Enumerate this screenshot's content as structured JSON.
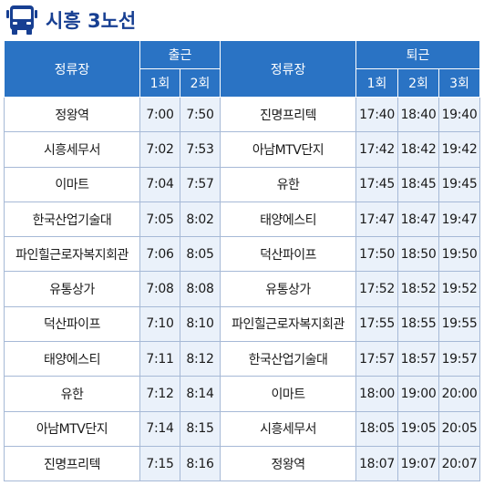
{
  "title": "시흥 3노선",
  "icon": "bus-icon",
  "header": {
    "stop": "정류장",
    "outbound": "출근",
    "inbound": "퇴근",
    "outbound_runs": [
      "1회",
      "2회"
    ],
    "inbound_runs": [
      "1회",
      "2회",
      "3회"
    ]
  },
  "rows": [
    {
      "out_stop": "정왕역",
      "out_times": [
        "7:00",
        "7:50"
      ],
      "in_stop": "진명프리텍",
      "in_times": [
        "17:40",
        "18:40",
        "19:40"
      ]
    },
    {
      "out_stop": "시흥세무서",
      "out_times": [
        "7:02",
        "7:53"
      ],
      "in_stop": "아남MTV단지",
      "in_times": [
        "17:42",
        "18:42",
        "19:42"
      ]
    },
    {
      "out_stop": "이마트",
      "out_times": [
        "7:04",
        "7:57"
      ],
      "in_stop": "유한",
      "in_times": [
        "17:45",
        "18:45",
        "19:45"
      ]
    },
    {
      "out_stop": "한국산업기술대",
      "out_times": [
        "7:05",
        "8:02"
      ],
      "in_stop": "태양에스티",
      "in_times": [
        "17:47",
        "18:47",
        "19:47"
      ]
    },
    {
      "out_stop": "파인힐근로자복지회관",
      "out_times": [
        "7:06",
        "8:05"
      ],
      "in_stop": "덕산파이프",
      "in_times": [
        "17:50",
        "18:50",
        "19:50"
      ]
    },
    {
      "out_stop": "유통상가",
      "out_times": [
        "7:08",
        "8:08"
      ],
      "in_stop": "유통상가",
      "in_times": [
        "17:52",
        "18:52",
        "19:52"
      ]
    },
    {
      "out_stop": "덕산파이프",
      "out_times": [
        "7:10",
        "8:10"
      ],
      "in_stop": "파인힐근로자복지회관",
      "in_times": [
        "17:55",
        "18:55",
        "19:55"
      ]
    },
    {
      "out_stop": "태양에스티",
      "out_times": [
        "7:11",
        "8:12"
      ],
      "in_stop": "한국산업기술대",
      "in_times": [
        "17:57",
        "18:57",
        "19:57"
      ]
    },
    {
      "out_stop": "유한",
      "out_times": [
        "7:12",
        "8:14"
      ],
      "in_stop": "이마트",
      "in_times": [
        "18:00",
        "19:00",
        "20:00"
      ]
    },
    {
      "out_stop": "아남MTV단지",
      "out_times": [
        "7:14",
        "8:15"
      ],
      "in_stop": "시흥세무서",
      "in_times": [
        "18:05",
        "19:05",
        "20:05"
      ]
    },
    {
      "out_stop": "진명프리텍",
      "out_times": [
        "7:15",
        "8:16"
      ],
      "in_stop": "정왕역",
      "in_times": [
        "18:07",
        "19:07",
        "20:07"
      ]
    }
  ]
}
